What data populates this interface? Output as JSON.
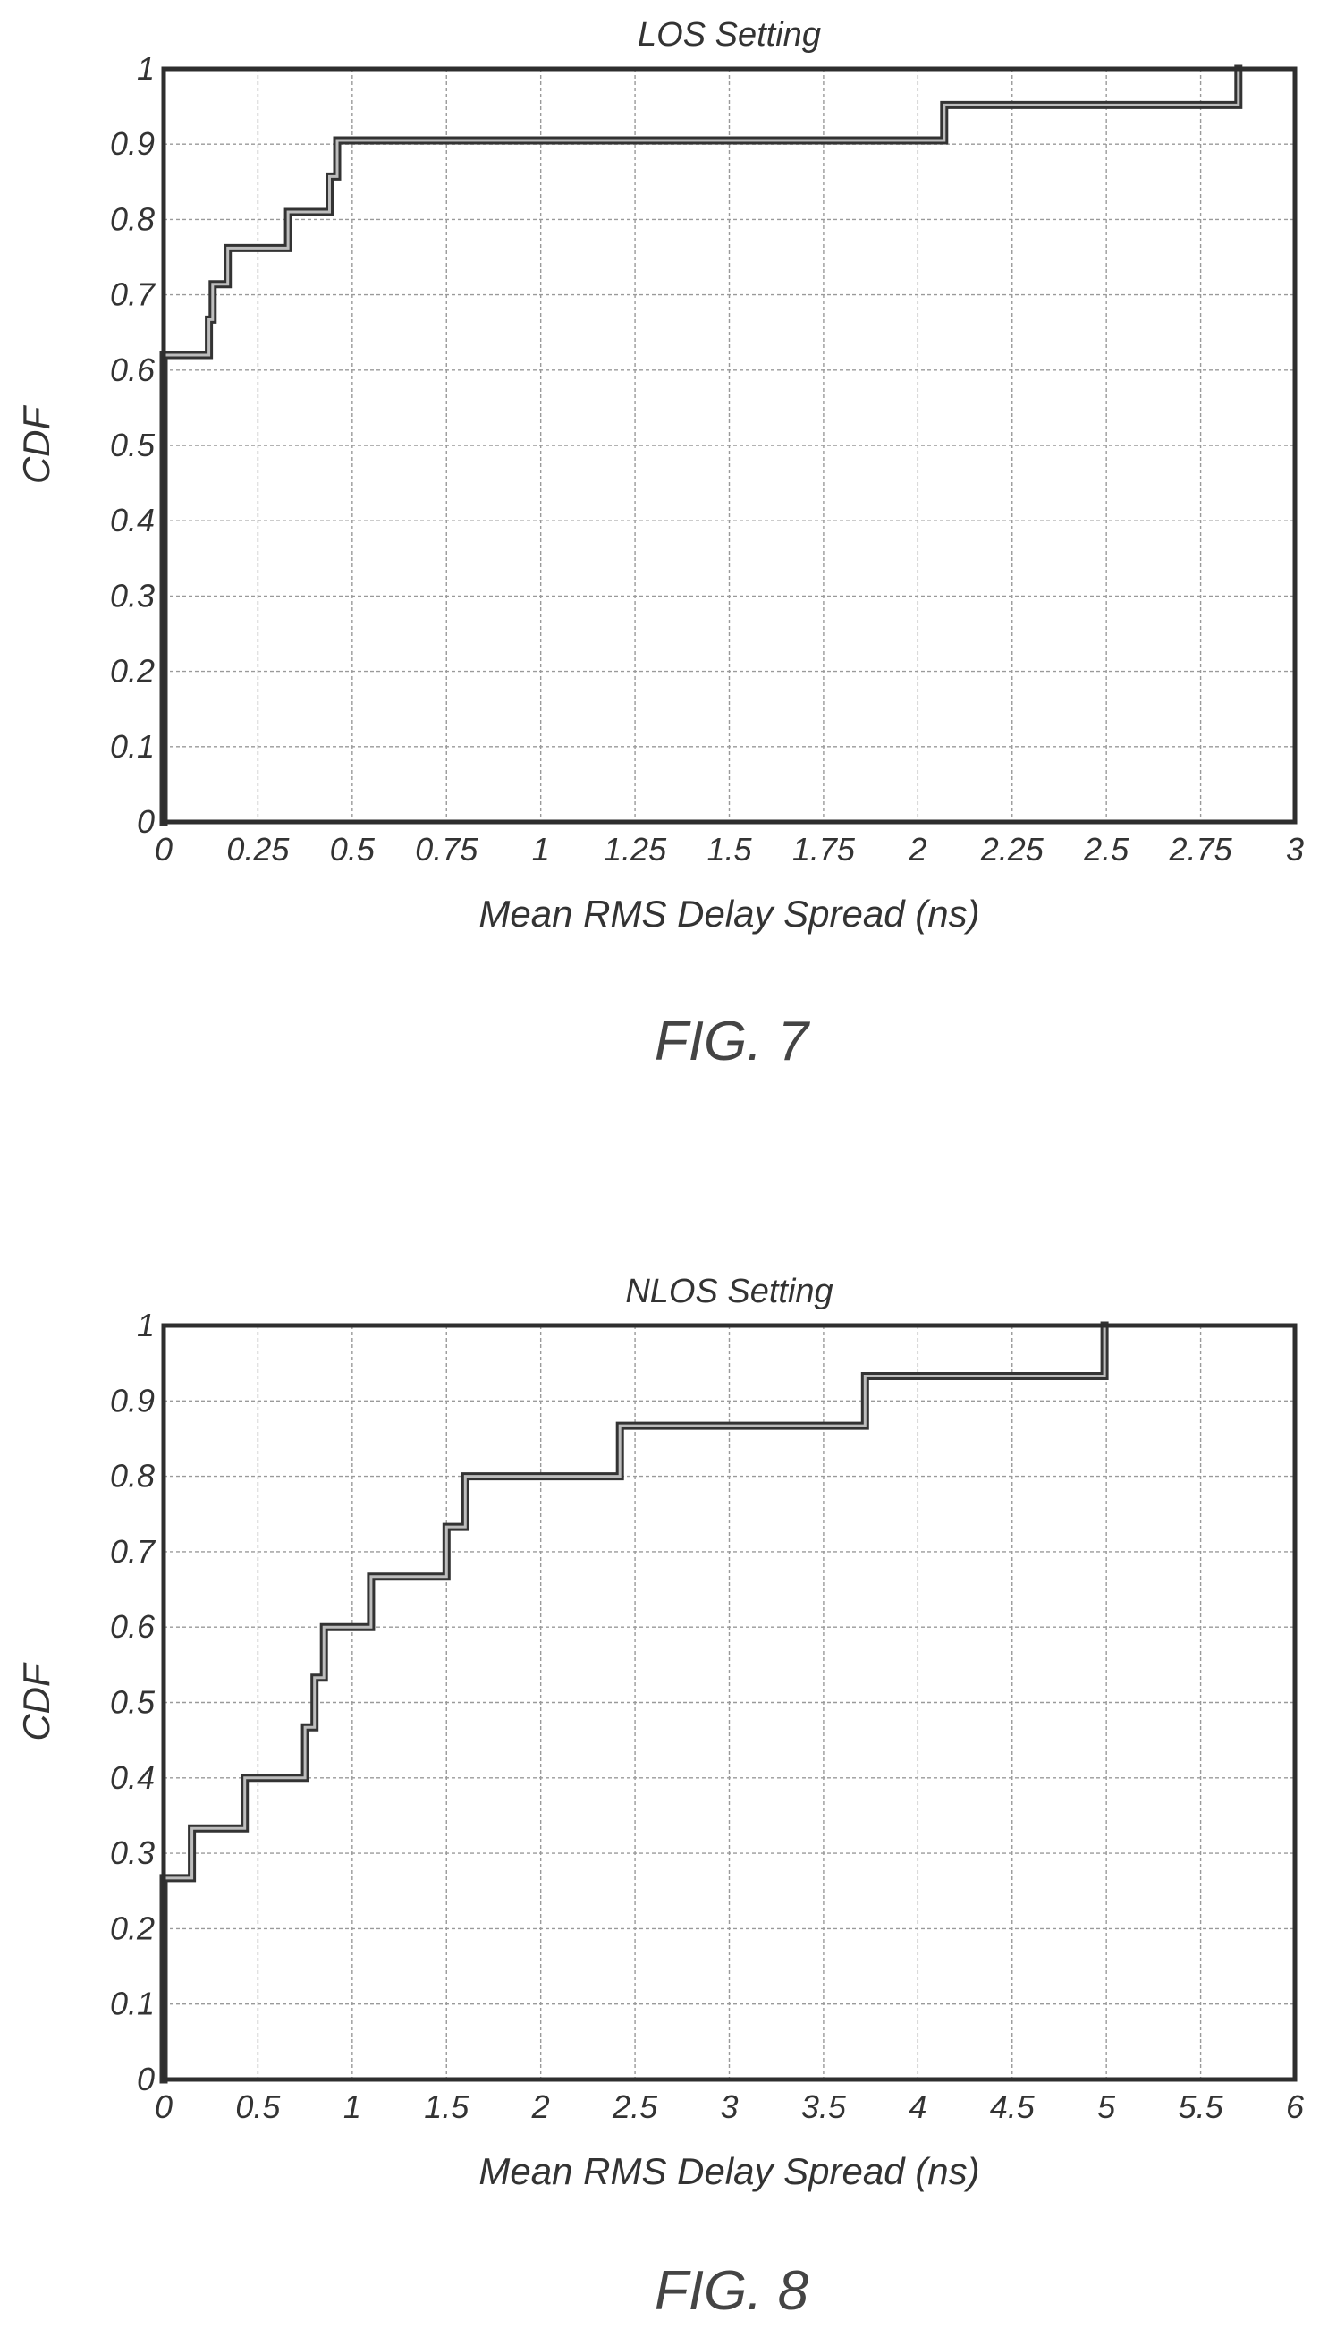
{
  "figures": [
    {
      "label": "FIG. 7"
    },
    {
      "label": "FIG. 8"
    }
  ],
  "chart_data": [
    {
      "type": "line",
      "step": true,
      "title": "LOS Setting",
      "xlabel": "Mean RMS Delay Spread  (ns)",
      "ylabel": "CDF",
      "xlim": [
        0,
        3
      ],
      "ylim": [
        0,
        1
      ],
      "grid": true,
      "line_color": "#333333",
      "x_ticks": [
        "0",
        "0.25",
        "0.5",
        "0.75",
        "1",
        "1.25",
        "1.5",
        "1.75",
        "2",
        "2.25",
        "2.5",
        "2.75",
        "3"
      ],
      "y_ticks": [
        "0",
        "0.1",
        "0.2",
        "0.3",
        "0.4",
        "0.5",
        "0.6",
        "0.7",
        "0.8",
        "0.9",
        "1"
      ],
      "series": [
        {
          "x": [
            0,
            0,
            0.12,
            0.12,
            0.13,
            0.13,
            0.17,
            0.17,
            0.33,
            0.33,
            0.44,
            0.44,
            0.46,
            0.46,
            2.07,
            2.07,
            2.85,
            2.85
          ],
          "y": [
            0,
            0.62,
            0.62,
            0.667,
            0.667,
            0.714,
            0.714,
            0.762,
            0.762,
            0.81,
            0.81,
            0.857,
            0.857,
            0.905,
            0.905,
            0.952,
            0.952,
            1.0
          ]
        }
      ]
    },
    {
      "type": "line",
      "step": true,
      "title": "NLOS Setting",
      "xlabel": "Mean RMS Delay Spread  (ns)",
      "ylabel": "CDF",
      "xlim": [
        0,
        6
      ],
      "ylim": [
        0,
        1
      ],
      "grid": true,
      "line_color": "#333333",
      "x_ticks": [
        "0",
        "0.5",
        "1",
        "1.5",
        "2",
        "2.5",
        "3",
        "3.5",
        "4",
        "4.5",
        "5",
        "5.5",
        "6"
      ],
      "y_ticks": [
        "0",
        "0.1",
        "0.2",
        "0.3",
        "0.4",
        "0.5",
        "0.6",
        "0.7",
        "0.8",
        "0.9",
        "1"
      ],
      "series": [
        {
          "x": [
            0,
            0,
            0.15,
            0.15,
            0.43,
            0.43,
            0.75,
            0.75,
            0.8,
            0.8,
            0.85,
            0.85,
            1.1,
            1.1,
            1.5,
            1.5,
            1.6,
            1.6,
            2.42,
            2.42,
            3.72,
            3.72,
            4.99,
            4.99
          ],
          "y": [
            0,
            0.267,
            0.267,
            0.333,
            0.333,
            0.4,
            0.4,
            0.467,
            0.467,
            0.533,
            0.533,
            0.6,
            0.6,
            0.667,
            0.667,
            0.733,
            0.733,
            0.8,
            0.8,
            0.867,
            0.867,
            0.933,
            0.933,
            1.0
          ]
        }
      ]
    }
  ]
}
